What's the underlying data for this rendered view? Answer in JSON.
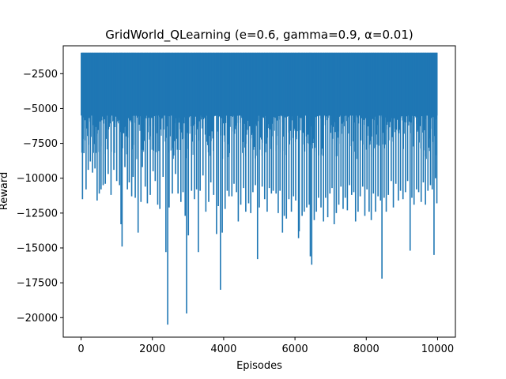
{
  "chart_data": {
    "type": "line",
    "title": "GridWorld_QLearning (e=0.6, gamma=0.9, α=0.01)",
    "xlabel": "Episodes",
    "ylabel": "Reward",
    "xlim": [
      -500,
      10500
    ],
    "ylim": [
      -21400,
      -500
    ],
    "x_ticks": [
      0,
      2000,
      4000,
      6000,
      8000,
      10000
    ],
    "y_ticks": [
      -2500,
      -5000,
      -7500,
      -10000,
      -12500,
      -15000,
      -17500,
      -20000
    ],
    "grid": false,
    "legend": "none",
    "series": [
      {
        "color": "#1f77b4",
        "envelope": {
          "upper": -1000,
          "band_lower": -5500,
          "dense_lower": -8500
        },
        "spikes": [
          [
            40,
            -11500
          ],
          [
            80,
            -8200
          ],
          [
            140,
            -10800
          ],
          [
            200,
            -9400
          ],
          [
            260,
            -8800
          ],
          [
            320,
            -9600
          ],
          [
            390,
            -9300
          ],
          [
            450,
            -11600
          ],
          [
            510,
            -11100
          ],
          [
            560,
            -10800
          ],
          [
            620,
            -10500
          ],
          [
            680,
            -10400
          ],
          [
            760,
            -9700
          ],
          [
            840,
            -11200
          ],
          [
            920,
            -9400
          ],
          [
            1000,
            -10200
          ],
          [
            1080,
            -10500
          ],
          [
            1120,
            -13300
          ],
          [
            1150,
            -14900
          ],
          [
            1230,
            -9200
          ],
          [
            1300,
            -10800
          ],
          [
            1350,
            -10300
          ],
          [
            1420,
            -11300
          ],
          [
            1460,
            -9900
          ],
          [
            1520,
            -11400
          ],
          [
            1600,
            -13900
          ],
          [
            1680,
            -11700
          ],
          [
            1720,
            -9200
          ],
          [
            1800,
            -10600
          ],
          [
            1860,
            -11800
          ],
          [
            1940,
            -11200
          ],
          [
            2020,
            -9500
          ],
          [
            2080,
            -10200
          ],
          [
            2150,
            -11900
          ],
          [
            2210,
            -12200
          ],
          [
            2300,
            -9900
          ],
          [
            2380,
            -15300
          ],
          [
            2430,
            -20500
          ],
          [
            2470,
            -12100
          ],
          [
            2560,
            -11100
          ],
          [
            2650,
            -9700
          ],
          [
            2720,
            -11100
          ],
          [
            2800,
            -11700
          ],
          [
            2860,
            -11000
          ],
          [
            2920,
            -12700
          ],
          [
            2960,
            -19700
          ],
          [
            3010,
            -14100
          ],
          [
            3100,
            -10900
          ],
          [
            3180,
            -11500
          ],
          [
            3240,
            -10800
          ],
          [
            3290,
            -15300
          ],
          [
            3340,
            -10900
          ],
          [
            3420,
            -9800
          ],
          [
            3500,
            -12400
          ],
          [
            3580,
            -11700
          ],
          [
            3640,
            -10300
          ],
          [
            3720,
            -11200
          ],
          [
            3800,
            -14000
          ],
          [
            3850,
            -12000
          ],
          [
            3910,
            -18000
          ],
          [
            3960,
            -13900
          ],
          [
            4040,
            -12200
          ],
          [
            4100,
            -10900
          ],
          [
            4150,
            -11300
          ],
          [
            4230,
            -11300
          ],
          [
            4290,
            -10400
          ],
          [
            4360,
            -11000
          ],
          [
            4410,
            -13100
          ],
          [
            4480,
            -11900
          ],
          [
            4560,
            -10700
          ],
          [
            4620,
            -12400
          ],
          [
            4700,
            -11800
          ],
          [
            4760,
            -12500
          ],
          [
            4820,
            -11000
          ],
          [
            4890,
            -10500
          ],
          [
            4950,
            -15800
          ],
          [
            5000,
            -12100
          ],
          [
            5080,
            -10600
          ],
          [
            5150,
            -11500
          ],
          [
            5220,
            -12400
          ],
          [
            5280,
            -10700
          ],
          [
            5340,
            -11100
          ],
          [
            5390,
            -10900
          ],
          [
            5470,
            -11100
          ],
          [
            5530,
            -12500
          ],
          [
            5580,
            -10900
          ],
          [
            5650,
            -13900
          ],
          [
            5700,
            -12700
          ],
          [
            5760,
            -12900
          ],
          [
            5830,
            -11500
          ],
          [
            5900,
            -12400
          ],
          [
            5960,
            -11300
          ],
          [
            6020,
            -11600
          ],
          [
            6100,
            -14300
          ],
          [
            6120,
            -13800
          ],
          [
            6200,
            -12700
          ],
          [
            6260,
            -12400
          ],
          [
            6330,
            -12100
          ],
          [
            6400,
            -11900
          ],
          [
            6430,
            -15600
          ],
          [
            6470,
            -16200
          ],
          [
            6540,
            -13000
          ],
          [
            6600,
            -12400
          ],
          [
            6660,
            -11400
          ],
          [
            6730,
            -12100
          ],
          [
            6800,
            -13100
          ],
          [
            6860,
            -11400
          ],
          [
            6920,
            -12800
          ],
          [
            6980,
            -11100
          ],
          [
            7040,
            -10700
          ],
          [
            7100,
            -13300
          ],
          [
            7160,
            -12500
          ],
          [
            7230,
            -11900
          ],
          [
            7290,
            -10600
          ],
          [
            7350,
            -12200
          ],
          [
            7410,
            -11400
          ],
          [
            7470,
            -12300
          ],
          [
            7530,
            -10500
          ],
          [
            7590,
            -11200
          ],
          [
            7650,
            -11000
          ],
          [
            7700,
            -13100
          ],
          [
            7770,
            -12400
          ],
          [
            7830,
            -11300
          ],
          [
            7900,
            -10600
          ],
          [
            7960,
            -12700
          ],
          [
            8020,
            -10800
          ],
          [
            8080,
            -12400
          ],
          [
            8140,
            -13000
          ],
          [
            8200,
            -11100
          ],
          [
            8260,
            -12400
          ],
          [
            8330,
            -11300
          ],
          [
            8400,
            -11600
          ],
          [
            8440,
            -17200
          ],
          [
            8500,
            -11400
          ],
          [
            8560,
            -12400
          ],
          [
            8620,
            -11200
          ],
          [
            8700,
            -10200
          ],
          [
            8760,
            -12100
          ],
          [
            8830,
            -10400
          ],
          [
            8900,
            -11600
          ],
          [
            8960,
            -10900
          ],
          [
            9030,
            -11500
          ],
          [
            9100,
            -11000
          ],
          [
            9160,
            -10200
          ],
          [
            9230,
            -15200
          ],
          [
            9280,
            -11400
          ],
          [
            9340,
            -11900
          ],
          [
            9410,
            -10800
          ],
          [
            9470,
            -11000
          ],
          [
            9540,
            -11700
          ],
          [
            9600,
            -10300
          ],
          [
            9660,
            -11900
          ],
          [
            9730,
            -10900
          ],
          [
            9800,
            -10500
          ],
          [
            9850,
            -10800
          ],
          [
            9900,
            -15500
          ],
          [
            9940,
            -10000
          ],
          [
            9980,
            -11800
          ]
        ]
      }
    ]
  }
}
